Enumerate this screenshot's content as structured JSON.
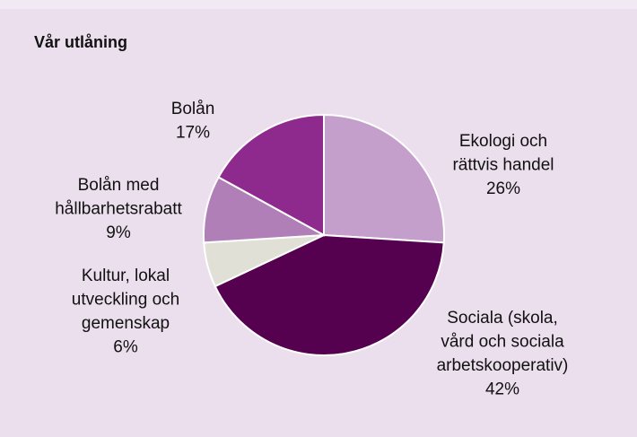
{
  "chart_data": {
    "type": "pie",
    "title": "Vår utlåning",
    "categories": [
      [
        "Ekologi och",
        "rättvis handel"
      ],
      [
        "Sociala (skola,",
        "vård och sociala",
        "arbetskooperativ)"
      ],
      [
        "Kultur, lokal",
        "utveckling och",
        "gemenskap"
      ],
      [
        "Bolån med",
        "hållbarhetsrabatt"
      ],
      [
        "Bolån"
      ]
    ],
    "values": [
      26,
      42,
      6,
      9,
      17
    ],
    "value_labels": [
      "26%",
      "42%",
      "6%",
      "9%",
      "17%"
    ],
    "colors": [
      "#c49fcb",
      "#560050",
      "#e0e0d6",
      "#b07fb8",
      "#8e2a8e"
    ]
  }
}
